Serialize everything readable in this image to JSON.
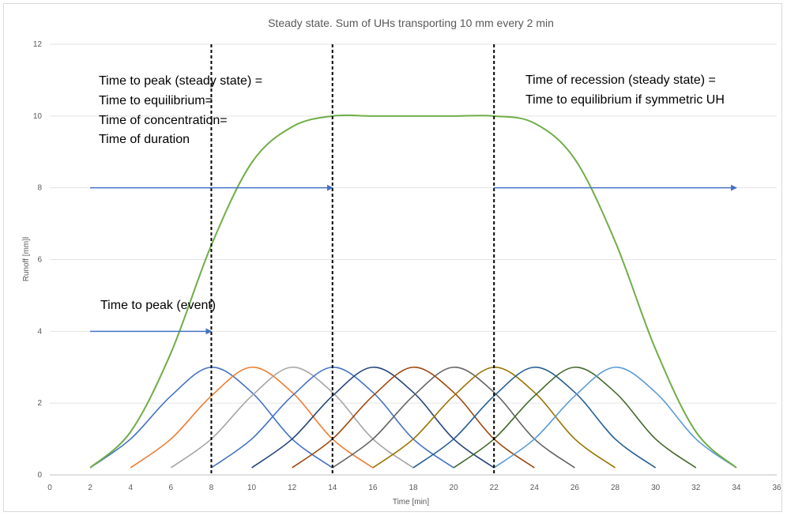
{
  "chart_data": {
    "type": "line",
    "title": "Steady state. Sum of UHs transporting 10 mm every 2 min",
    "xlabel": "Time [min]",
    "ylabel": "Runoff [mm]l",
    "xlim": [
      0,
      36
    ],
    "ylim": [
      0,
      12
    ],
    "xticks": [
      "0",
      "2",
      "4",
      "6",
      "8",
      "10",
      "12",
      "14",
      "16",
      "18",
      "20",
      "22",
      "24",
      "26",
      "28",
      "30",
      "32",
      "34",
      "36"
    ],
    "yticks": [
      "0",
      "2",
      "4",
      "6",
      "8",
      "10",
      "12"
    ],
    "grid": "horizontal",
    "legend": "none",
    "series": [
      {
        "color": "#4472c4",
        "x": [
          2,
          4,
          6,
          8,
          10,
          12,
          14
        ],
        "y": [
          0.2,
          1,
          2.2,
          3,
          2.3,
          1,
          0.2
        ]
      },
      {
        "color": "#ed7d31",
        "x": [
          4,
          6,
          8,
          10,
          12,
          14,
          16
        ],
        "y": [
          0.2,
          1,
          2.2,
          3,
          2.3,
          1,
          0.2
        ]
      },
      {
        "color": "#a5a5a5",
        "x": [
          6,
          8,
          10,
          12,
          14,
          16,
          18
        ],
        "y": [
          0.2,
          1,
          2.2,
          3,
          2.3,
          1,
          0.2
        ]
      },
      {
        "color": "#4472c4",
        "x": [
          8,
          10,
          12,
          14,
          16,
          18,
          20
        ],
        "y": [
          0.2,
          1,
          2.2,
          3,
          2.3,
          1,
          0.2
        ]
      },
      {
        "color": "#264478",
        "x": [
          10,
          12,
          14,
          16,
          18,
          20,
          22
        ],
        "y": [
          0.2,
          1,
          2.2,
          3,
          2.3,
          1,
          0.2
        ]
      },
      {
        "color": "#9e480e",
        "x": [
          12,
          14,
          16,
          18,
          20,
          22,
          24
        ],
        "y": [
          0.2,
          1,
          2.2,
          3,
          2.3,
          1,
          0.2
        ]
      },
      {
        "color": "#636363",
        "x": [
          14,
          16,
          18,
          20,
          22,
          24,
          26
        ],
        "y": [
          0.2,
          1,
          2.2,
          3,
          2.3,
          1,
          0.2
        ]
      },
      {
        "color": "#997300",
        "x": [
          16,
          18,
          20,
          22,
          24,
          26,
          28
        ],
        "y": [
          0.2,
          1,
          2.2,
          3,
          2.3,
          1,
          0.2
        ]
      },
      {
        "color": "#255e91",
        "x": [
          18,
          20,
          22,
          24,
          26,
          28,
          30
        ],
        "y": [
          0.2,
          1,
          2.2,
          3,
          2.3,
          1,
          0.2
        ]
      },
      {
        "color": "#43682b",
        "x": [
          20,
          22,
          24,
          26,
          28,
          30,
          32
        ],
        "y": [
          0.2,
          1,
          2.2,
          3,
          2.3,
          1,
          0.2
        ]
      },
      {
        "color": "#5b9bd5",
        "x": [
          22,
          24,
          26,
          28,
          30,
          32,
          34
        ],
        "y": [
          0.2,
          1,
          2.2,
          3,
          2.3,
          1,
          0.2
        ]
      },
      {
        "color": "#70ad47",
        "x": [
          2,
          4,
          6,
          8,
          10,
          12,
          14,
          16,
          18,
          20,
          22,
          24,
          26,
          28,
          30,
          32,
          34
        ],
        "y": [
          0.2,
          1.2,
          3.4,
          6.4,
          8.7,
          9.7,
          10,
          10,
          10,
          10,
          10,
          9.8,
          8.8,
          6.5,
          3.5,
          1.2,
          0.2
        ]
      }
    ],
    "vlines": [
      8,
      14,
      22
    ],
    "arrows": [
      {
        "x1": 2,
        "x2": 14,
        "y": 8
      },
      {
        "x1": 22,
        "x2": 34,
        "y": 8
      },
      {
        "x1": 2,
        "x2": 8,
        "y": 4
      }
    ],
    "annotations": [
      {
        "lines": [
          "Time to peak (steady state) =",
          "Time to equilibrium=",
          "Time of concentration=",
          "Time of duration"
        ]
      },
      {
        "lines": [
          "Time of recession (steady state) =",
          "Time to equilibrium if symmetric UH"
        ]
      },
      {
        "lines": [
          "Time to peak (event)"
        ]
      }
    ]
  }
}
